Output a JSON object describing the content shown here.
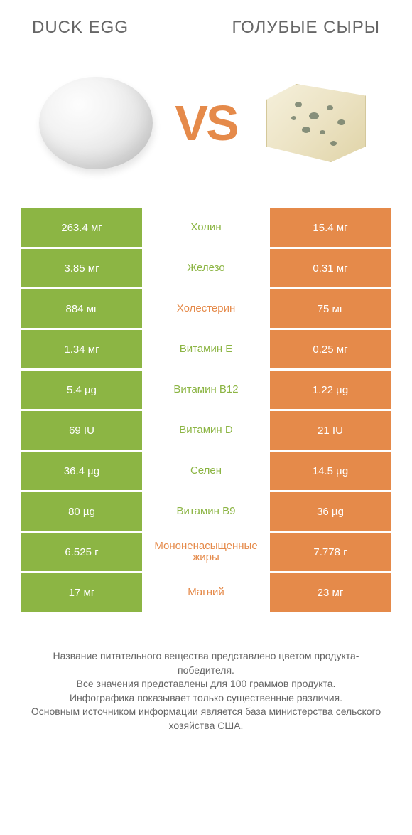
{
  "colors": {
    "left": "#8cb544",
    "right": "#e58a4a",
    "nutrient_left_text": "#8cb544",
    "nutrient_right_text": "#e58a4a",
    "vs": "#e58a4a"
  },
  "header": {
    "left_title": "DUCK EGG",
    "right_title": "ГОЛУБЫЕ СЫРЫ",
    "vs_label": "VS"
  },
  "rows": [
    {
      "left": "263.4 мг",
      "nutrient": "Холин",
      "right": "15.4 мг",
      "winner": "left"
    },
    {
      "left": "3.85 мг",
      "nutrient": "Железо",
      "right": "0.31 мг",
      "winner": "left"
    },
    {
      "left": "884 мг",
      "nutrient": "Холестерин",
      "right": "75 мг",
      "winner": "right"
    },
    {
      "left": "1.34 мг",
      "nutrient": "Витамин E",
      "right": "0.25 мг",
      "winner": "left"
    },
    {
      "left": "5.4 µg",
      "nutrient": "Витамин B12",
      "right": "1.22 µg",
      "winner": "left"
    },
    {
      "left": "69 IU",
      "nutrient": "Витамин D",
      "right": "21 IU",
      "winner": "left"
    },
    {
      "left": "36.4 µg",
      "nutrient": "Селен",
      "right": "14.5 µg",
      "winner": "left"
    },
    {
      "left": "80 µg",
      "nutrient": "Витамин B9",
      "right": "36 µg",
      "winner": "left"
    },
    {
      "left": "6.525 г",
      "nutrient": "Мононенасыщенные жиры",
      "right": "7.778 г",
      "winner": "right"
    },
    {
      "left": "17 мг",
      "nutrient": "Магний",
      "right": "23 мг",
      "winner": "right"
    }
  ],
  "footnote": "Название питательного вещества представлено цветом продукта-победителя.\nВсе значения представлены для 100 граммов продукта.\nИнфографика показывает только существенные различия.\nОсновным источником информации является база министерства сельского хозяйства США."
}
